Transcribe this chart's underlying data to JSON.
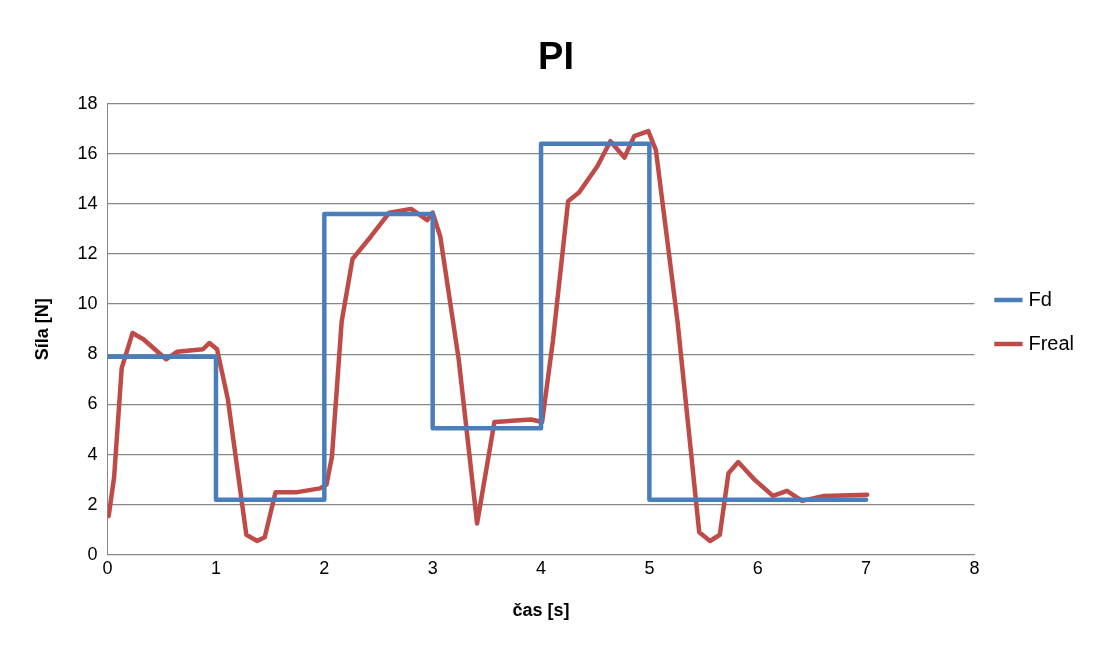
{
  "chart_data": {
    "type": "line",
    "title": "PI",
    "xlabel": "čas [s]",
    "ylabel": "Síla [N]",
    "xlim": [
      0,
      8
    ],
    "xticks": [
      0,
      1,
      2,
      3,
      4,
      5,
      6,
      7,
      8
    ],
    "ylim": [
      0,
      18
    ],
    "yticks": [
      0,
      2,
      4,
      6,
      8,
      10,
      12,
      14,
      16,
      18
    ],
    "grid": "y",
    "legend": "right",
    "marker": "none",
    "line_style": "solid",
    "series": [
      {
        "name": "Fd",
        "type": "step",
        "color": "#4a7ebb",
        "x": [
          0,
          1,
          2,
          3,
          4,
          5,
          7
        ],
        "values": [
          7.9,
          2.2,
          13.6,
          5.05,
          16.4,
          2.2,
          2.2
        ]
      },
      {
        "name": "Freal",
        "type": "line",
        "color": "#be4b48",
        "x": [
          0.01,
          0.06,
          0.13,
          0.23,
          0.33,
          0.54,
          0.64,
          0.88,
          0.94,
          1.01,
          1.11,
          1.28,
          1.38,
          1.45,
          1.55,
          1.75,
          1.96,
          2.02,
          2.07,
          2.16,
          2.26,
          2.43,
          2.6,
          2.8,
          2.95,
          3.0,
          3.07,
          3.24,
          3.41,
          3.57,
          3.91,
          4.01,
          4.11,
          4.25,
          4.35,
          4.52,
          4.64,
          4.77,
          4.86,
          4.99,
          5.06,
          5.26,
          5.46,
          5.56,
          5.65,
          5.73,
          5.82,
          5.97,
          6.14,
          6.27,
          6.41,
          6.61,
          7.01
        ],
        "values": [
          1.55,
          3.1,
          7.45,
          8.85,
          8.6,
          7.8,
          8.1,
          8.2,
          8.45,
          8.2,
          6.2,
          0.8,
          0.55,
          0.7,
          2.5,
          2.5,
          2.65,
          2.8,
          3.9,
          9.3,
          11.8,
          12.7,
          13.65,
          13.8,
          13.35,
          13.65,
          12.7,
          7.8,
          1.25,
          5.3,
          5.4,
          5.3,
          8.55,
          14.1,
          14.45,
          15.5,
          16.5,
          15.85,
          16.7,
          16.9,
          16.15,
          9.3,
          0.9,
          0.55,
          0.8,
          3.25,
          3.7,
          3.0,
          2.35,
          2.55,
          2.15,
          2.35,
          2.4
        ]
      }
    ]
  }
}
